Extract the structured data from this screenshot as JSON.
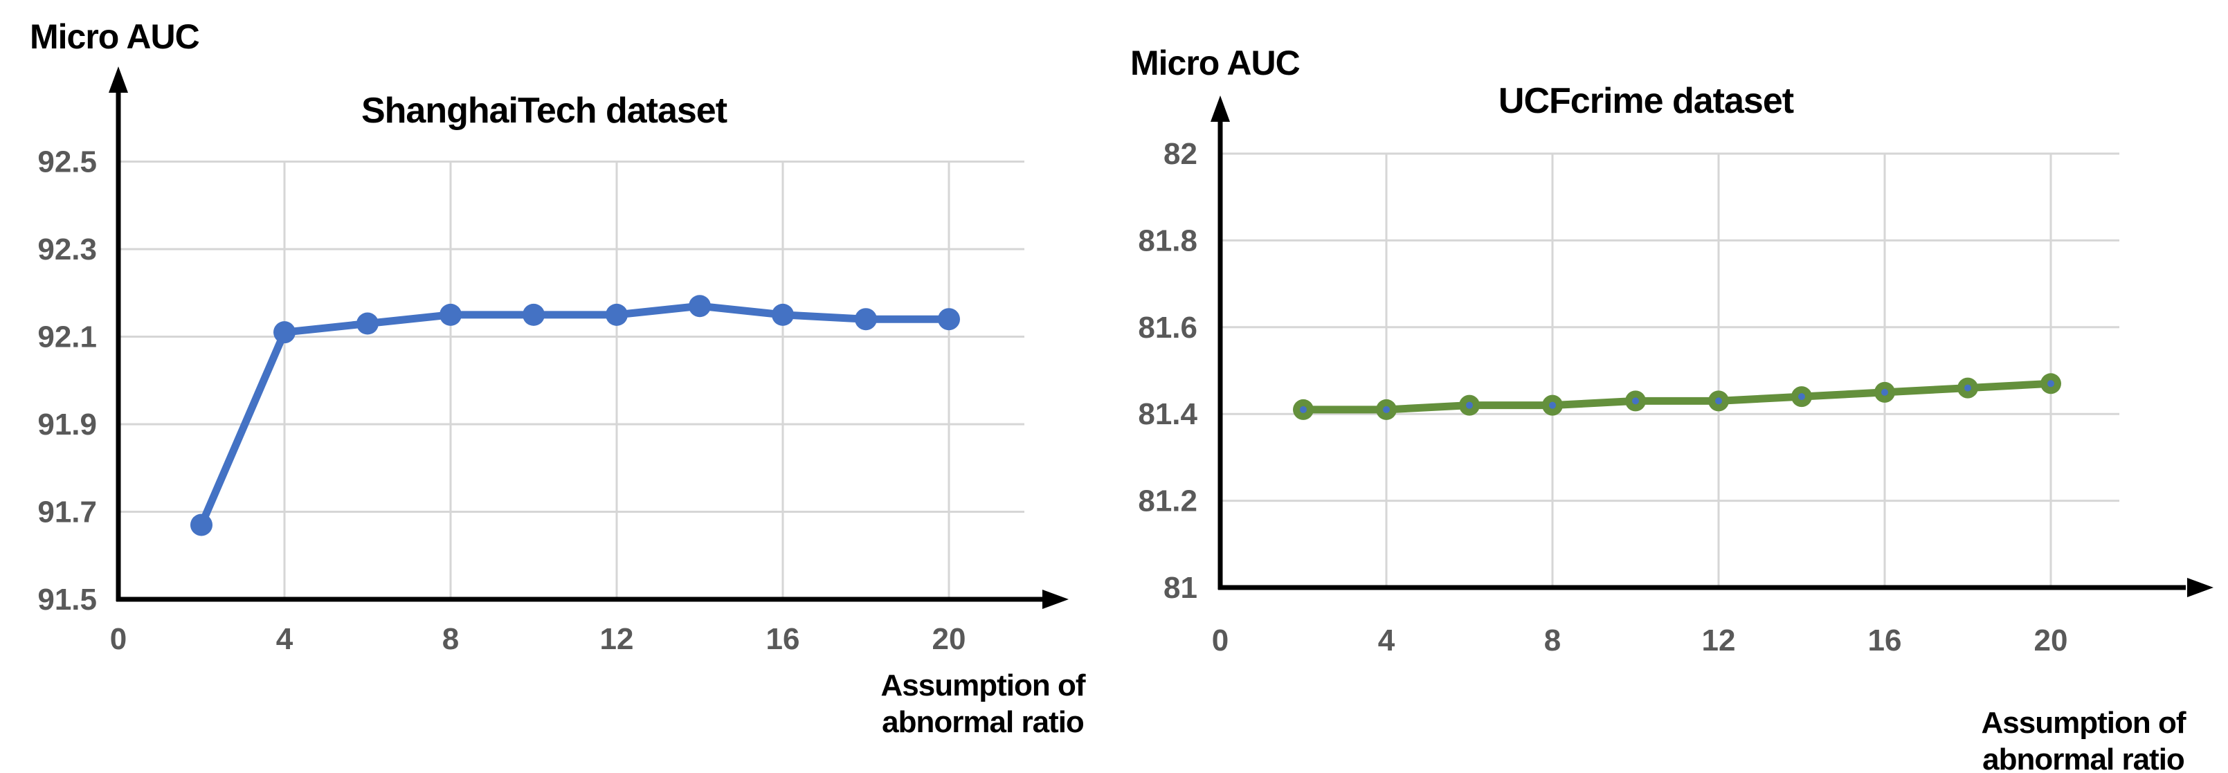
{
  "figure": {
    "background_color": "#ffffff",
    "grid_color": "#d6d6d6",
    "axis_color": "#000000",
    "tick_label_color": "#595959"
  },
  "chart_data": [
    {
      "type": "line",
      "title": "ShanghaiTech dataset",
      "y_axis_title": "Micro AUC",
      "xlabel_lines": [
        "Assumption of",
        "abnormal ratio"
      ],
      "x": [
        2,
        4,
        6,
        8,
        10,
        12,
        14,
        16,
        18,
        20
      ],
      "series": [
        {
          "name": "ShanghaiTech Micro AUC",
          "values": [
            91.67,
            92.11,
            92.13,
            92.15,
            92.15,
            92.15,
            92.17,
            92.15,
            92.14,
            92.14
          ],
          "color": "#4472C4",
          "marker_color": "#4472C4",
          "marker_center_color": "#4472C4"
        }
      ],
      "x_ticks": [
        0,
        4,
        8,
        12,
        16,
        20
      ],
      "y_ticks": [
        92.5,
        92.3,
        92.1,
        91.9,
        91.7,
        91.5
      ],
      "ylim": [
        91.5,
        92.5
      ],
      "xlim": [
        0,
        22
      ],
      "grid": true,
      "legend": false
    },
    {
      "type": "line",
      "title": "UCFcrime dataset",
      "y_axis_title": "Micro AUC",
      "xlabel_lines": [
        "Assumption of",
        "abnormal ratio"
      ],
      "x": [
        2,
        4,
        6,
        8,
        10,
        12,
        14,
        16,
        18,
        20
      ],
      "series": [
        {
          "name": "UCFcrime Micro AUC",
          "values": [
            81.41,
            81.41,
            81.42,
            81.42,
            81.43,
            81.43,
            81.44,
            81.45,
            81.46,
            81.47
          ],
          "color": "#64903C",
          "marker_color": "#64903C",
          "marker_center_color": "#4472C4"
        }
      ],
      "x_ticks": [
        0,
        4,
        8,
        12,
        16,
        20
      ],
      "y_ticks": [
        82,
        81.8,
        81.6,
        81.4,
        81.2,
        81
      ],
      "ylim": [
        81,
        82
      ],
      "xlim": [
        0,
        22
      ],
      "grid": true,
      "legend": false
    }
  ]
}
